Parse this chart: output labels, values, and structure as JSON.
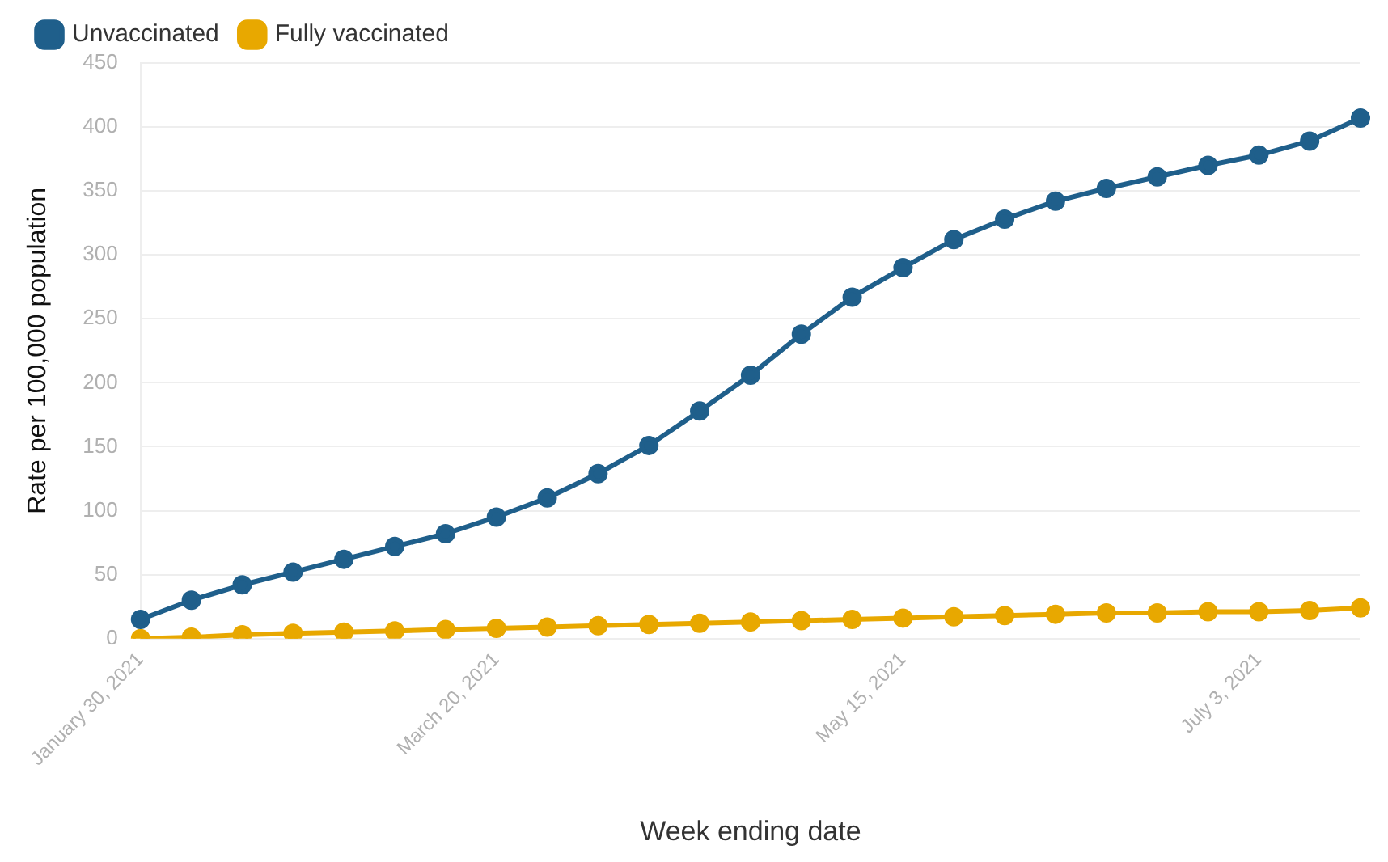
{
  "chart_data": {
    "type": "line",
    "xlabel": "Week ending date",
    "ylabel": "Rate per 100,000 population",
    "categories": [
      "January 30, 2021",
      null,
      null,
      null,
      null,
      null,
      null,
      "March 20, 2021",
      null,
      null,
      null,
      null,
      null,
      null,
      null,
      "May 15, 2021",
      null,
      null,
      null,
      null,
      null,
      null,
      "July 3, 2021",
      null,
      null
    ],
    "series": [
      {
        "name": "Unvaccinated",
        "color": "#1f5f8b",
        "values": [
          15,
          30,
          42,
          52,
          62,
          72,
          82,
          95,
          110,
          129,
          151,
          178,
          206,
          238,
          267,
          290,
          312,
          328,
          342,
          352,
          361,
          370,
          378,
          389,
          407
        ]
      },
      {
        "name": "Fully vaccinated",
        "color": "#e8a800",
        "values": [
          0,
          1,
          3,
          4,
          5,
          6,
          7,
          8,
          9,
          10,
          11,
          12,
          13,
          14,
          15,
          16,
          17,
          18,
          19,
          20,
          20,
          21,
          21,
          22,
          24
        ]
      }
    ],
    "ylim": [
      0,
      450
    ],
    "yticks": [
      0,
      50,
      100,
      150,
      200,
      250,
      300,
      350,
      400,
      450
    ],
    "grid": "y",
    "legend": "top left",
    "marker": "circle",
    "line_style": "solid"
  }
}
